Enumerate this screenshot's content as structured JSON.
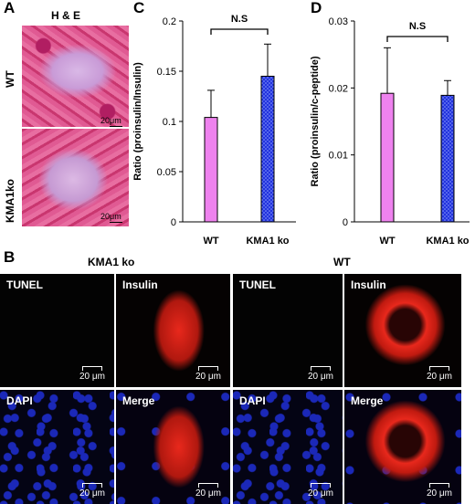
{
  "panel_a": {
    "letter": "A",
    "title": "H & E",
    "rows": [
      {
        "label": "WT",
        "scale": "20μm"
      },
      {
        "label": "KMA1ko",
        "scale": "20μm"
      }
    ]
  },
  "panel_b": {
    "letter": "B",
    "groups": [
      {
        "title": "KMA1 ko",
        "tiles": [
          {
            "label": "TUNEL",
            "scale": "20 μm"
          },
          {
            "label": "Insulin",
            "scale": "20 μm"
          },
          {
            "label": "DAPI",
            "scale": "20 μm"
          },
          {
            "label": "Merge",
            "scale": "20 μm"
          }
        ]
      },
      {
        "title": "WT",
        "tiles": [
          {
            "label": "TUNEL",
            "scale": "20 μm"
          },
          {
            "label": "Insulin",
            "scale": "20 μm"
          },
          {
            "label": "DAPI",
            "scale": "20 μm"
          },
          {
            "label": "Merge",
            "scale": "20 μm"
          }
        ]
      }
    ]
  },
  "colors": {
    "wt_bar": "#ee82ee",
    "ko_bar": "#2233dd",
    "ko_pattern": "#8fa0ff"
  },
  "chart_data": [
    {
      "panel": "C",
      "type": "bar",
      "categories": [
        "WT",
        "KMA1 ko"
      ],
      "values": [
        0.104,
        0.145
      ],
      "errors": [
        0.027,
        0.032
      ],
      "ylabel": "Ratio (proinsulin/Insulin)",
      "ylim": [
        0,
        0.2
      ],
      "yticks": [
        "0",
        "0.05",
        "0.1",
        "0.15",
        "0.2"
      ],
      "annotation": "N.S"
    },
    {
      "panel": "D",
      "type": "bar",
      "categories": [
        "WT",
        "KMA1 ko"
      ],
      "values": [
        0.0192,
        0.0189
      ],
      "errors": [
        0.0068,
        0.0022
      ],
      "ylabel": "Ratio (proinsulin/c-peptide)",
      "ylim": [
        0,
        0.03
      ],
      "yticks": [
        "0",
        "0.01",
        "0.02",
        "0.03"
      ],
      "annotation": "N.S"
    }
  ]
}
